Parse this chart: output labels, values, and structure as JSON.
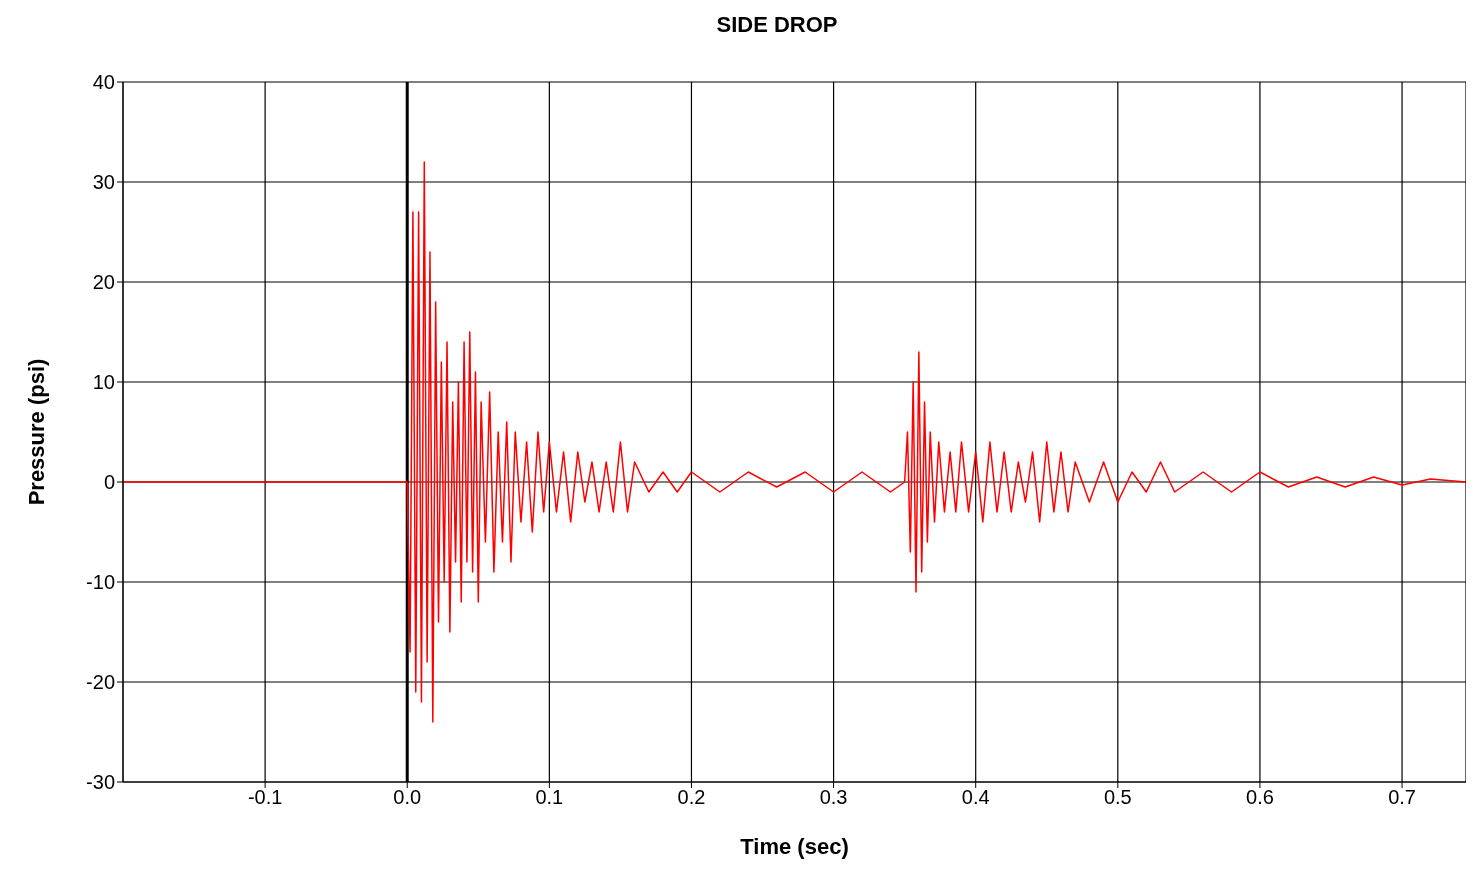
{
  "chart_data": {
    "type": "line",
    "title": "SIDE DROP",
    "xlabel": "Time (sec)",
    "ylabel": "Pressure (psi)",
    "xlim": [
      -0.2,
      0.745
    ],
    "xticks": [
      -0.1,
      {
        "value": 0,
        "label": "0.0"
      },
      0.1,
      0.2,
      0.3,
      0.4,
      0.5,
      0.6,
      0.7
    ],
    "ylim": [
      -30,
      40
    ],
    "yticks": [
      -30,
      -20,
      -10,
      0,
      10,
      20,
      30,
      40
    ],
    "grid": true,
    "marker": "none",
    "line_style": "solid",
    "ref_lines": [
      {
        "axis": "x",
        "value": 0,
        "color": "#000000"
      }
    ],
    "series": [
      {
        "color": "#ff0000",
        "x": [
          -0.2,
          -0.1,
          0,
          0.002,
          0.004,
          0.006,
          0.008,
          0.01,
          0.012,
          0.014,
          0.016,
          0.018,
          0.02,
          0.022,
          0.024,
          0.026,
          0.028,
          0.03,
          0.032,
          0.034,
          0.036,
          0.038,
          0.04,
          0.042,
          0.044,
          0.046,
          0.048,
          0.05,
          0.052,
          0.055,
          0.058,
          0.061,
          0.064,
          0.067,
          0.07,
          0.073,
          0.076,
          0.08,
          0.084,
          0.088,
          0.092,
          0.096,
          0.1,
          0.105,
          0.11,
          0.115,
          0.12,
          0.125,
          0.13,
          0.135,
          0.14,
          0.145,
          0.15,
          0.155,
          0.16,
          0.17,
          0.18,
          0.19,
          0.2,
          0.22,
          0.24,
          0.26,
          0.28,
          0.3,
          0.32,
          0.34,
          0.35,
          0.352,
          0.354,
          0.356,
          0.358,
          0.36,
          0.362,
          0.364,
          0.366,
          0.368,
          0.371,
          0.374,
          0.378,
          0.382,
          0.386,
          0.39,
          0.395,
          0.4,
          0.405,
          0.41,
          0.415,
          0.42,
          0.425,
          0.43,
          0.435,
          0.44,
          0.445,
          0.45,
          0.455,
          0.46,
          0.465,
          0.47,
          0.48,
          0.49,
          0.5,
          0.51,
          0.52,
          0.53,
          0.54,
          0.56,
          0.58,
          0.6,
          0.62,
          0.64,
          0.66,
          0.68,
          0.7,
          0.72,
          0.745
        ],
        "values": [
          0,
          0,
          0,
          -17,
          27,
          -21,
          27,
          -22,
          32,
          -18,
          23,
          -24,
          18,
          -14,
          12,
          -10,
          14,
          -15,
          8,
          -8,
          10,
          -12,
          14,
          -8,
          15,
          -9,
          11,
          -12,
          8,
          -6,
          9,
          -9,
          5,
          -6,
          6,
          -8,
          5,
          -4,
          4,
          -5,
          5,
          -3,
          4,
          -3,
          3,
          -4,
          3,
          -2,
          2,
          -3,
          2,
          -3,
          4,
          -3,
          2,
          -1,
          1,
          -1,
          1,
          -1,
          1,
          -0.5,
          1,
          -1,
          1,
          -1,
          0,
          5,
          -7,
          10,
          -11,
          13,
          -9,
          8,
          -6,
          5,
          -4,
          4,
          -3,
          3,
          -3,
          4,
          -3,
          3,
          -4,
          4,
          -3,
          3,
          -3,
          2,
          -2,
          3,
          -4,
          4,
          -3,
          3,
          -3,
          2,
          -2,
          2,
          -2,
          1,
          -1,
          2,
          -1,
          1,
          -1,
          1,
          -0.5,
          0.5,
          -0.5,
          0.5,
          -0.3,
          0.3,
          0
        ]
      }
    ]
  }
}
